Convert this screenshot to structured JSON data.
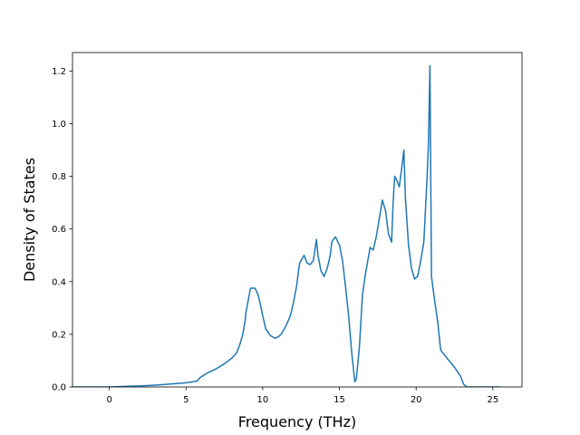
{
  "chart_data": {
    "type": "line",
    "title": "",
    "xlabel": "Frequency (THz)",
    "ylabel": "Density of States",
    "xlim": [
      -2.4,
      26.9
    ],
    "ylim": [
      0.0,
      1.27
    ],
    "xticks": [
      0,
      5,
      10,
      15,
      20,
      25
    ],
    "xtick_labels": [
      "0",
      "5",
      "10",
      "15",
      "20",
      "25"
    ],
    "yticks": [
      0.0,
      0.2,
      0.4,
      0.6,
      0.8,
      1.0,
      1.2
    ],
    "ytick_labels": [
      "0.0",
      "0.2",
      "0.4",
      "0.6",
      "0.8",
      "1.0",
      "1.2"
    ],
    "grid": false,
    "legend": "none",
    "series": [
      {
        "color": "#1f77b4",
        "x": [
          -2.4,
          -1.0,
          0.0,
          1.0,
          2.0,
          3.0,
          4.0,
          5.0,
          5.7,
          5.9,
          6.3,
          7.0,
          7.5,
          8.0,
          8.3,
          8.5,
          8.7,
          8.85,
          8.9,
          9.2,
          9.5,
          9.7,
          9.9,
          10.0,
          10.2,
          10.5,
          10.8,
          11.0,
          11.2,
          11.5,
          11.8,
          12.0,
          12.2,
          12.4,
          12.5,
          12.7,
          12.9,
          13.1,
          13.3,
          13.5,
          13.6,
          13.8,
          14.0,
          14.2,
          14.4,
          14.5,
          14.6,
          14.75,
          14.9,
          15.0,
          15.2,
          15.4,
          15.6,
          15.8,
          16.0,
          16.1,
          16.3,
          16.5,
          16.7,
          17.0,
          17.2,
          17.4,
          17.6,
          17.8,
          18.0,
          18.2,
          18.4,
          18.5,
          18.6,
          18.7,
          18.9,
          19.1,
          19.2,
          19.3,
          19.5,
          19.7,
          19.9,
          20.1,
          20.3,
          20.5,
          20.7,
          20.8,
          20.9,
          21.0,
          21.2,
          21.4,
          21.6,
          22.0,
          22.5,
          22.9,
          23.1,
          23.3,
          25.5
        ],
        "y": [
          0.0,
          0.0,
          0.0,
          0.002,
          0.004,
          0.007,
          0.011,
          0.016,
          0.022,
          0.035,
          0.05,
          0.07,
          0.088,
          0.11,
          0.13,
          0.16,
          0.2,
          0.25,
          0.28,
          0.375,
          0.375,
          0.35,
          0.3,
          0.27,
          0.22,
          0.195,
          0.185,
          0.19,
          0.2,
          0.23,
          0.27,
          0.32,
          0.38,
          0.47,
          0.48,
          0.5,
          0.47,
          0.465,
          0.48,
          0.56,
          0.5,
          0.44,
          0.42,
          0.45,
          0.5,
          0.55,
          0.56,
          0.57,
          0.55,
          0.54,
          0.48,
          0.38,
          0.27,
          0.13,
          0.02,
          0.03,
          0.15,
          0.35,
          0.43,
          0.53,
          0.52,
          0.57,
          0.64,
          0.71,
          0.67,
          0.58,
          0.55,
          0.7,
          0.8,
          0.79,
          0.76,
          0.85,
          0.9,
          0.72,
          0.54,
          0.45,
          0.41,
          0.42,
          0.48,
          0.55,
          0.78,
          0.92,
          1.22,
          0.42,
          0.33,
          0.25,
          0.14,
          0.11,
          0.075,
          0.04,
          0.01,
          0.0,
          0.0
        ]
      }
    ]
  }
}
